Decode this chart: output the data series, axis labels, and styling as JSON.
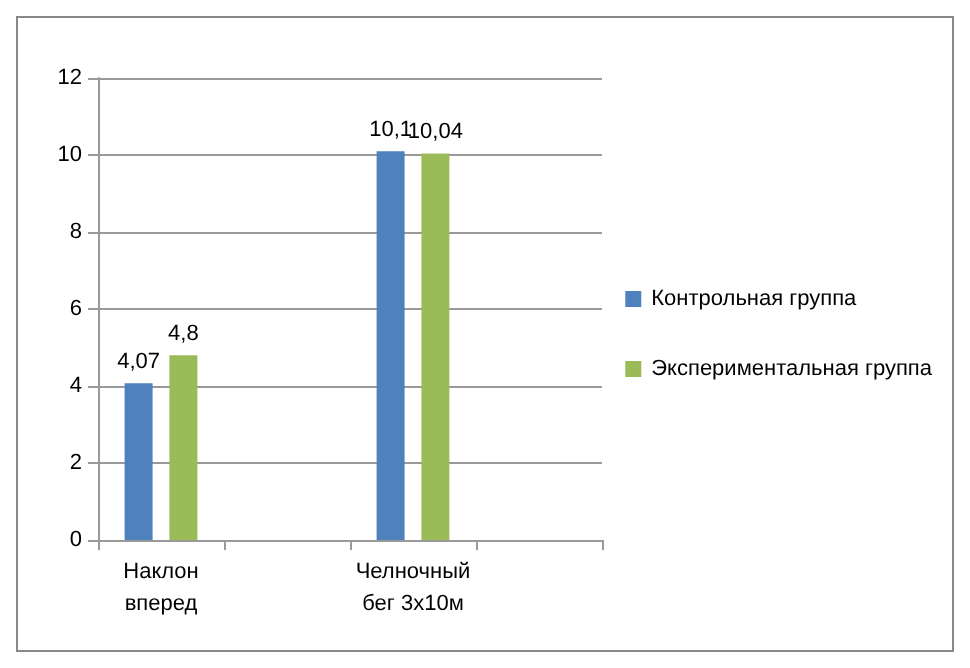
{
  "chart_data": {
    "type": "bar",
    "categories": [
      "Наклон\nвперед",
      null,
      "Челночный\nбег 3х10м",
      null
    ],
    "series": [
      {
        "name": "Контрольная группа",
        "color": "#4f81bd",
        "values": [
          4.07,
          null,
          10.1,
          null
        ],
        "value_labels": [
          "4,07",
          null,
          "10,1",
          null
        ]
      },
      {
        "name": "Экспериментальная группа",
        "color": "#9bbb59",
        "values": [
          4.8,
          null,
          10.04,
          null
        ],
        "value_labels": [
          "4,8",
          null,
          "10,04",
          null
        ]
      }
    ],
    "ylim": [
      0,
      12
    ],
    "yticks": [
      0,
      2,
      4,
      6,
      8,
      10,
      12
    ],
    "grid": "y",
    "legend": "right"
  }
}
